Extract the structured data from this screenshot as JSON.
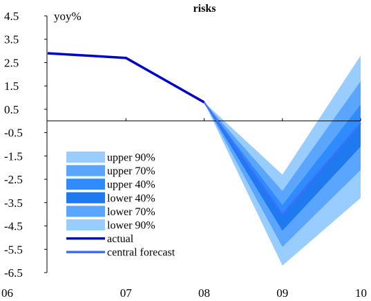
{
  "chart_data": {
    "type": "area",
    "title": "risks",
    "ylabel": "yoy%",
    "xlabel": "",
    "categories": [
      "06",
      "07",
      "08",
      "09",
      "10"
    ],
    "ylim": [
      -6.5,
      4.5
    ],
    "yticks": [
      4.5,
      3.5,
      2.5,
      1.5,
      0.5,
      -0.5,
      -1.5,
      -2.5,
      -3.5,
      -4.5,
      -5.5,
      -6.5
    ],
    "fan_start_index": 2,
    "series": [
      {
        "name": "actual",
        "color": "#0000cc",
        "values": [
          2.9,
          2.7,
          0.8,
          null,
          null
        ]
      },
      {
        "name": "central forecast",
        "color": "#3f6fff",
        "values": [
          null,
          null,
          0.8,
          -4.0,
          -0.1
        ]
      },
      {
        "name": "upper 90%",
        "color": "#99ccff",
        "values": [
          null,
          null,
          0.8,
          -2.3,
          2.8
        ]
      },
      {
        "name": "upper 70%",
        "color": "#5aa6ff",
        "values": [
          null,
          null,
          0.8,
          -3.0,
          1.7
        ]
      },
      {
        "name": "upper 40%",
        "color": "#2f8cff",
        "values": [
          null,
          null,
          0.8,
          -3.6,
          0.7
        ]
      },
      {
        "name": "lower 40%",
        "color": "#1f7af0",
        "values": [
          null,
          null,
          0.8,
          -4.7,
          -1.1
        ]
      },
      {
        "name": "lower 70%",
        "color": "#5aa6ff",
        "values": [
          null,
          null,
          0.8,
          -5.4,
          -2.1
        ]
      },
      {
        "name": "lower 90%",
        "color": "#99ccff",
        "values": [
          null,
          null,
          0.8,
          -6.2,
          -3.3
        ]
      }
    ],
    "legend_position": "bottom-left",
    "legend": [
      {
        "label": "upper 90%",
        "color": "#99ccff",
        "kind": "swatch"
      },
      {
        "label": "upper 70%",
        "color": "#5aa6ff",
        "kind": "swatch"
      },
      {
        "label": "upper 40%",
        "color": "#2f8cff",
        "kind": "swatch"
      },
      {
        "label": "lower 40%",
        "color": "#1f7af0",
        "kind": "swatch"
      },
      {
        "label": "lower 70%",
        "color": "#5aa6ff",
        "kind": "swatch"
      },
      {
        "label": "lower 90%",
        "color": "#99ccff",
        "kind": "swatch"
      },
      {
        "label": "actual",
        "color": "#0000cc",
        "kind": "line"
      },
      {
        "label": "central forecast",
        "color": "#3f6fff",
        "kind": "line"
      }
    ],
    "grid": false
  }
}
